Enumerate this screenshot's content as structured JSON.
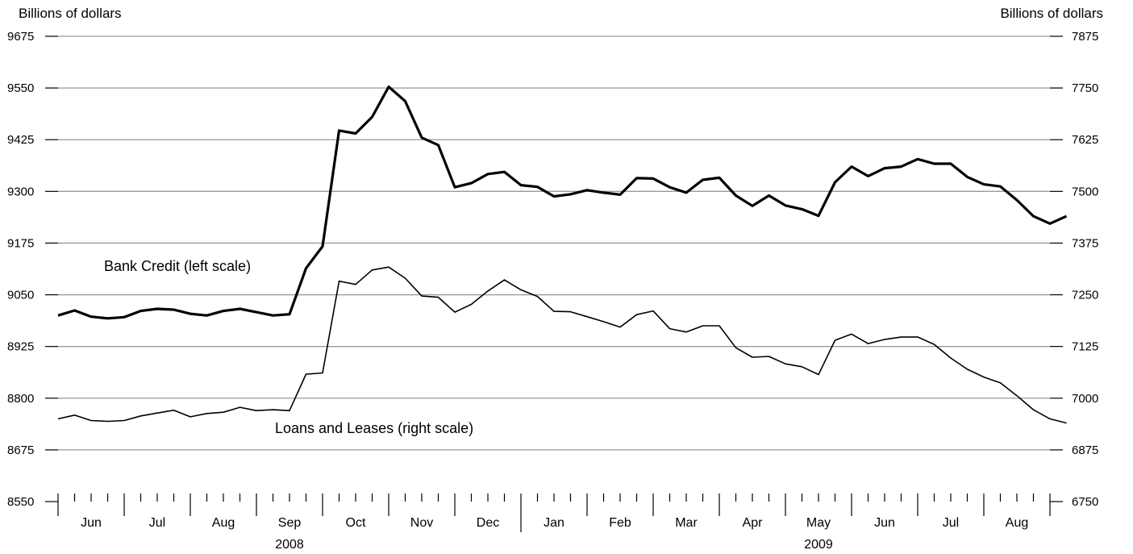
{
  "chart_data": {
    "type": "line",
    "left_axis": {
      "label": "Billions of dollars",
      "ylim": [
        8550,
        9675
      ],
      "ticks": [
        8550,
        8675,
        8800,
        8925,
        9050,
        9175,
        9300,
        9425,
        9550,
        9675
      ]
    },
    "right_axis": {
      "label": "Billions of dollars",
      "ylim": [
        6750,
        7875
      ],
      "ticks": [
        6750,
        6875,
        7000,
        7125,
        7250,
        7375,
        7500,
        7625,
        7750,
        7875
      ]
    },
    "grid": true,
    "x_axis": {
      "weeks_total": 60,
      "month_boundaries_weeks": [
        0,
        4,
        8,
        12,
        16,
        20,
        24,
        28,
        32,
        36,
        40,
        44,
        48,
        52,
        56,
        60
      ],
      "months": [
        {
          "label": "Jun"
        },
        {
          "label": "Jul"
        },
        {
          "label": "Aug"
        },
        {
          "label": "Sep"
        },
        {
          "label": "Oct"
        },
        {
          "label": "Nov"
        },
        {
          "label": "Dec"
        },
        {
          "label": "Jan"
        },
        {
          "label": "Feb"
        },
        {
          "label": "Mar"
        },
        {
          "label": "Apr"
        },
        {
          "label": "May"
        },
        {
          "label": "Jun"
        },
        {
          "label": "Jul"
        },
        {
          "label": "Aug"
        }
      ],
      "years": [
        {
          "label": "2008",
          "month_index": 3
        },
        {
          "label": "2009",
          "month_index": 11
        }
      ],
      "year_divider_month_index": 7
    },
    "series": [
      {
        "name": "Bank Credit (left scale)",
        "axis": "left",
        "line_weight": "heavy",
        "values": [
          9000,
          9012,
          8997,
          8993,
          8996,
          9011,
          9016,
          9014,
          9004,
          9000,
          9011,
          9016,
          9008,
          9000,
          9003,
          9114,
          9167,
          9447,
          9440,
          9480,
          9553,
          9518,
          9430,
          9412,
          9310,
          9320,
          9342,
          9347,
          9315,
          9311,
          9288,
          9293,
          9303,
          9297,
          9292,
          9332,
          9331,
          9310,
          9297,
          9328,
          9333,
          9290,
          9265,
          9290,
          9266,
          9257,
          9241,
          9322,
          9360,
          9337,
          9356,
          9360,
          9378,
          9367,
          9367,
          9335,
          9317,
          9312,
          9279,
          9240,
          9222,
          9240
        ]
      },
      {
        "name": "Loans and Leases (right scale)",
        "axis": "right",
        "line_weight": "light",
        "values": [
          6950,
          6959,
          6946,
          6944,
          6946,
          6957,
          6964,
          6971,
          6955,
          6963,
          6966,
          6978,
          6970,
          6972,
          6970,
          7058,
          7061,
          7283,
          7275,
          7310,
          7317,
          7290,
          7247,
          7244,
          7208,
          7227,
          7259,
          7286,
          7262,
          7246,
          7210,
          7209,
          7197,
          7185,
          7172,
          7202,
          7211,
          7168,
          7160,
          7175,
          7175,
          7122,
          7099,
          7101,
          7083,
          7076,
          7057,
          7140,
          7155,
          7132,
          7142,
          7148,
          7148,
          7130,
          7097,
          7070,
          7051,
          7037,
          7006,
          6972,
          6950,
          6940
        ]
      }
    ]
  }
}
